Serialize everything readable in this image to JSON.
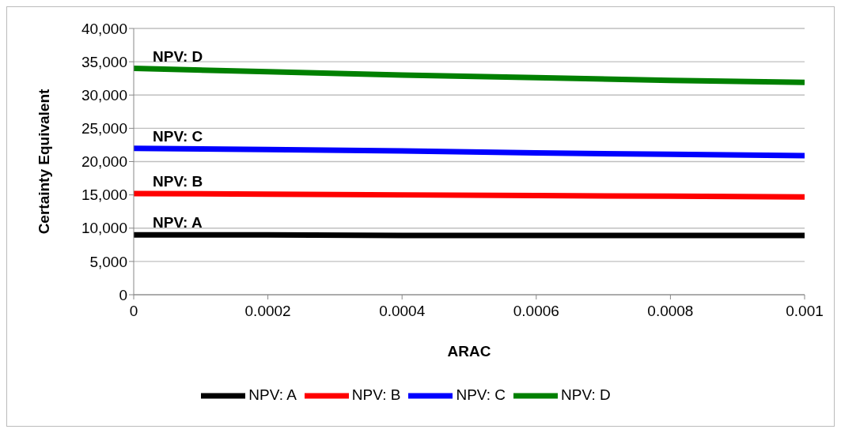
{
  "chart_data": {
    "type": "line",
    "xlabel": "ARAC",
    "ylabel": "Certainty Equivalent",
    "x": [
      0,
      0.0002,
      0.0004,
      0.0006,
      0.0008,
      0.001
    ],
    "series": [
      {
        "name": "NPV: A",
        "color": "#000000",
        "values": [
          9000,
          9000,
          8900,
          8900,
          8900,
          8900
        ]
      },
      {
        "name": "NPV: B",
        "color": "#ff0000",
        "values": [
          15200,
          15100,
          15000,
          14900,
          14800,
          14700
        ]
      },
      {
        "name": "NPV: C",
        "color": "#0000ff",
        "values": [
          22000,
          21800,
          21600,
          21300,
          21100,
          20900
        ]
      },
      {
        "name": "NPV: D",
        "color": "#008000",
        "values": [
          34000,
          33500,
          33000,
          32600,
          32200,
          31900
        ]
      }
    ],
    "xlim": [
      0,
      0.001
    ],
    "xticks": [
      0,
      0.0002,
      0.0004,
      0.0006,
      0.0008,
      0.001
    ],
    "ylim": [
      0,
      40000
    ],
    "yticks": [
      0,
      {
        "value": 5000,
        "label": "5,000"
      },
      {
        "value": 10000,
        "label": "10,000"
      },
      {
        "value": 15000,
        "label": "15,000"
      },
      {
        "value": 20000,
        "label": "20,000"
      },
      {
        "value": 25000,
        "label": "25,000"
      },
      {
        "value": 30000,
        "label": "30,000"
      },
      {
        "value": 35000,
        "label": "35,000"
      },
      {
        "value": 40000,
        "label": "40,000"
      }
    ],
    "grid": "y",
    "legend": "bottom",
    "marker": "none",
    "line_style": "solid"
  }
}
